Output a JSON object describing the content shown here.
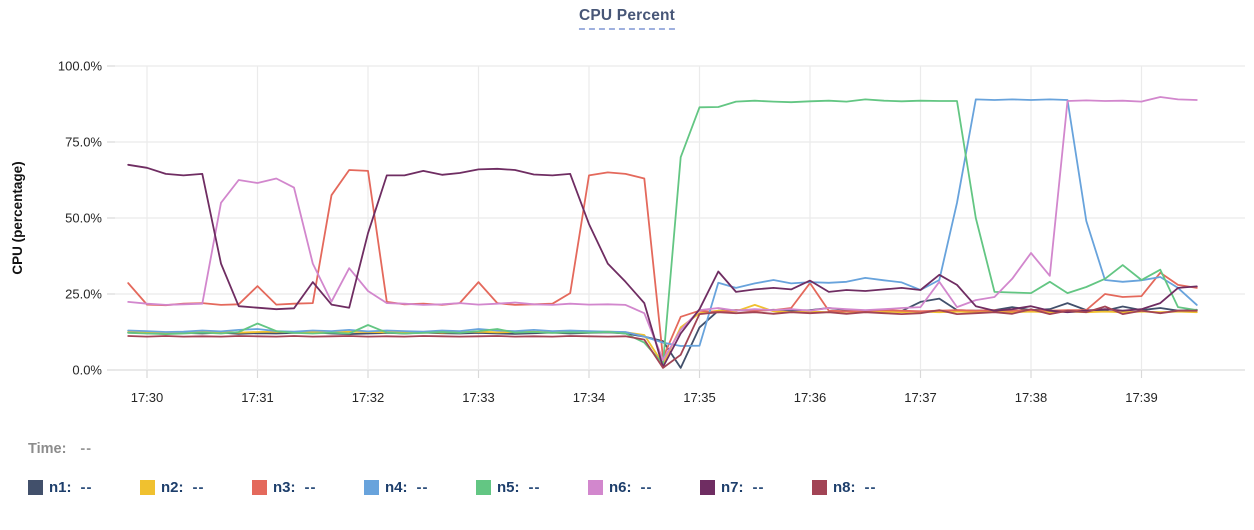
{
  "title": {
    "text": "CPU Percent"
  },
  "time_row": {
    "label": "Time:",
    "value": "--"
  },
  "legend": {
    "items": [
      {
        "name": "n1",
        "label": "n1:",
        "value": "--",
        "color": "#42506b"
      },
      {
        "name": "n2",
        "label": "n2:",
        "value": "--",
        "color": "#f0c12f"
      },
      {
        "name": "n3",
        "label": "n3:",
        "value": "--",
        "color": "#e4695c"
      },
      {
        "name": "n4",
        "label": "n4:",
        "value": "--",
        "color": "#68a3dc"
      },
      {
        "name": "n5",
        "label": "n5:",
        "value": "--",
        "color": "#63c683"
      },
      {
        "name": "n6",
        "label": "n6:",
        "value": "--",
        "color": "#d287cd"
      },
      {
        "name": "n7",
        "label": "n7:",
        "value": "--",
        "color": "#6f2d62"
      },
      {
        "name": "n8",
        "label": "n8:",
        "value": "--",
        "color": "#a24455"
      }
    ]
  },
  "chart_data": {
    "type": "line",
    "title": "CPU Percent",
    "xlabel": "",
    "ylabel": "CPU (percentage)",
    "x_unit": "minutes after 17:30",
    "ylim": [
      0,
      100
    ],
    "grid": true,
    "legend_position": "bottom",
    "y_ticks": [
      {
        "label": "0.0%",
        "value": 0
      },
      {
        "label": "25.0%",
        "value": 25
      },
      {
        "label": "50.0%",
        "value": 50
      },
      {
        "label": "75.0%",
        "value": 75
      },
      {
        "label": "100.0%",
        "value": 100
      }
    ],
    "x_ticks": [
      {
        "label": "17:30",
        "minute": 0
      },
      {
        "label": "17:31",
        "minute": 1
      },
      {
        "label": "17:32",
        "minute": 2
      },
      {
        "label": "17:33",
        "minute": 3
      },
      {
        "label": "17:34",
        "minute": 4
      },
      {
        "label": "17:35",
        "minute": 5
      },
      {
        "label": "17:36",
        "minute": 6
      },
      {
        "label": "17:37",
        "minute": 7
      },
      {
        "label": "17:38",
        "minute": 8
      },
      {
        "label": "17:39",
        "minute": 9
      }
    ],
    "x": [
      -0.17,
      0,
      0.17,
      0.33,
      0.5,
      0.67,
      0.83,
      1,
      1.17,
      1.33,
      1.5,
      1.67,
      1.83,
      2,
      2.17,
      2.33,
      2.5,
      2.67,
      2.83,
      3,
      3.17,
      3.33,
      3.5,
      3.67,
      3.83,
      4,
      4.17,
      4.33,
      4.5,
      4.67,
      4.83,
      5,
      5.17,
      5.33,
      5.5,
      5.67,
      5.83,
      6,
      6.17,
      6.33,
      6.5,
      6.67,
      6.83,
      7,
      7.17,
      7.33,
      7.5,
      7.67,
      7.83,
      8,
      8.17,
      8.33,
      8.5,
      8.67,
      8.83,
      9,
      9.17,
      9.33,
      9.5
    ],
    "series": [
      {
        "name": "n1",
        "color": "#42506b",
        "values": [
          12.3,
          12.1,
          11.9,
          12.2,
          12,
          12.3,
          11.9,
          12.1,
          12,
          12.2,
          12.4,
          12,
          11.8,
          12,
          12.2,
          12,
          12.3,
          12.1,
          12,
          12.2,
          12,
          11.9,
          12.1,
          12.3,
          12,
          12.2,
          12.4,
          12,
          11,
          9.5,
          0.7,
          14,
          19.5,
          19.7,
          19.5,
          19.8,
          19.5,
          19.7,
          20.4,
          19.7,
          19.5,
          19.7,
          19.4,
          22.4,
          23.5,
          19.7,
          19.5,
          19.7,
          20.7,
          19.7,
          20,
          22,
          19.7,
          19.5,
          20.9,
          19.7,
          20.4,
          19.5,
          19.8
        ]
      },
      {
        "name": "n2",
        "color": "#f0c12f",
        "values": [
          12.8,
          12.5,
          12.3,
          12.5,
          12.4,
          12.6,
          12.3,
          12.5,
          12.6,
          12.4,
          12.5,
          12.3,
          12.6,
          12.5,
          12.4,
          12.6,
          12.5,
          12.3,
          12.5,
          12.6,
          12.4,
          12.5,
          12.6,
          12.3,
          12.5,
          12.4,
          12.6,
          12.4,
          11.5,
          2,
          14,
          18.7,
          19.5,
          19.3,
          21.4,
          19.3,
          19,
          19.2,
          19,
          19.2,
          19,
          19.2,
          19,
          19.2,
          19,
          19.2,
          19,
          19.2,
          19,
          19.2,
          19,
          19.2,
          19,
          19.2,
          19,
          19.2,
          19,
          19.2,
          19
        ]
      },
      {
        "name": "n3",
        "color": "#e4695c",
        "values": [
          28.6,
          21.5,
          21.3,
          21.8,
          22,
          21.4,
          21.6,
          27.6,
          21.5,
          21.8,
          22,
          57.5,
          65.8,
          65.5,
          22.4,
          21.6,
          21.8,
          21.4,
          22,
          28.9,
          22,
          21.4,
          21.6,
          21.8,
          25.3,
          64,
          65,
          64.5,
          63,
          4,
          17.5,
          19.5,
          19,
          19.7,
          19.5,
          19.7,
          20.4,
          28.6,
          19.5,
          19.3,
          19.5,
          19.7,
          19.5,
          19.3,
          19.5,
          19.7,
          19.5,
          19.7,
          19.5,
          19.7,
          19.5,
          19.7,
          19.7,
          25,
          24,
          24.3,
          32,
          28,
          27
        ]
      },
      {
        "name": "n4",
        "color": "#68a3dc",
        "values": [
          13,
          12.8,
          12.5,
          12.6,
          13,
          12.7,
          13.2,
          13.5,
          12.8,
          12.6,
          13,
          12.8,
          13.2,
          12.7,
          13,
          12.8,
          12.6,
          13,
          12.8,
          13.5,
          13,
          12.8,
          13.2,
          12.8,
          13,
          12.8,
          12.6,
          12.5,
          11,
          9,
          7.9,
          8,
          28.7,
          27,
          28.5,
          29.6,
          28.5,
          28.9,
          28.7,
          29,
          30.3,
          29.5,
          28.8,
          26.3,
          29.6,
          55,
          89,
          88.8,
          89,
          88.8,
          89,
          88.8,
          49,
          29.6,
          29,
          29.5,
          30.6,
          27,
          21.4
        ]
      },
      {
        "name": "n5",
        "color": "#63c683",
        "values": [
          12.2,
          12,
          11.8,
          12,
          12.3,
          12,
          12.5,
          15.3,
          12.8,
          12.2,
          12,
          12.3,
          12,
          14.8,
          12.3,
          12,
          12.2,
          12.5,
          12.2,
          12.8,
          13.5,
          12.3,
          12.5,
          12.2,
          12.4,
          12.3,
          12.5,
          12,
          9,
          2,
          70,
          86.4,
          86.5,
          88.3,
          88.6,
          88.3,
          88.1,
          88.4,
          88.6,
          88.3,
          89,
          88.6,
          88.4,
          88.6,
          88.5,
          88.5,
          50,
          25.7,
          25.5,
          25.3,
          29,
          25.3,
          27.3,
          30,
          34.5,
          29.6,
          33,
          20.7,
          19.7
        ]
      },
      {
        "name": "n6",
        "color": "#d287cd",
        "values": [
          22.4,
          21.8,
          21.4,
          21.6,
          21.8,
          55,
          62.5,
          61.5,
          63,
          60,
          35,
          22.5,
          33.5,
          26,
          22,
          21.8,
          21.4,
          21.6,
          22,
          21.5,
          21.8,
          22.2,
          21.6,
          21.4,
          21.8,
          21.5,
          21.6,
          21.4,
          18.7,
          3.3,
          13.2,
          19.7,
          20.4,
          19.5,
          20,
          19.7,
          20,
          19.5,
          20.4,
          20,
          19.7,
          20,
          20.4,
          20.7,
          29,
          20.7,
          23,
          24,
          30,
          38.5,
          31,
          88.5,
          88.7,
          88.5,
          88.6,
          88.3,
          89.8,
          89,
          88.8
        ]
      },
      {
        "name": "n7",
        "color": "#6f2d62",
        "values": [
          67.5,
          66.5,
          64.5,
          64,
          64.5,
          35,
          21,
          20.5,
          20,
          20.3,
          28.9,
          21.5,
          20.5,
          45,
          64,
          64,
          65.5,
          64.2,
          64.8,
          66,
          66.2,
          65.8,
          64.3,
          64,
          64.5,
          48,
          35,
          29,
          22,
          1,
          12,
          20,
          32.4,
          25.7,
          26.5,
          27,
          26.5,
          29.4,
          25.7,
          26.3,
          26,
          26.5,
          27,
          26.3,
          31.3,
          28,
          21,
          19.5,
          20,
          21,
          19.5,
          19,
          19.5,
          20,
          19.5,
          20,
          22,
          27,
          27.5
        ]
      },
      {
        "name": "n8",
        "color": "#a24455",
        "values": [
          11.2,
          11,
          11.2,
          11,
          11.1,
          11,
          11.2,
          11.1,
          11,
          11.2,
          11,
          11.1,
          11.2,
          11,
          11.1,
          11,
          11.2,
          11.1,
          11,
          11.1,
          11.2,
          11,
          11.1,
          11,
          11.2,
          11.1,
          11,
          11.1,
          10,
          0.7,
          5,
          18.4,
          19,
          18.7,
          19,
          18.5,
          19,
          18.7,
          19,
          18.5,
          19,
          18.7,
          18.4,
          18.7,
          19.7,
          18.4,
          18.7,
          19,
          18.5,
          20,
          18.4,
          19.5,
          19,
          20.9,
          18.4,
          19.5,
          18.7,
          19.5,
          19.5
        ]
      }
    ]
  }
}
